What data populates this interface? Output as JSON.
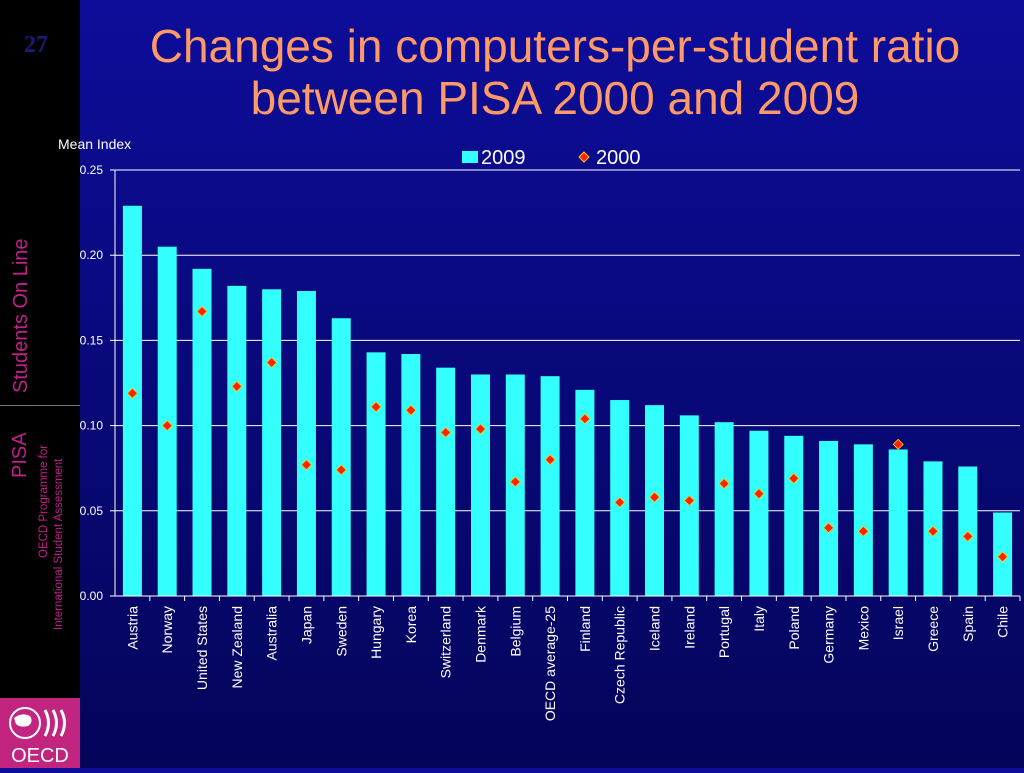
{
  "slide": {
    "number": "27",
    "title_line1": "Changes in computers-per-student ratio",
    "title_line2": "between PISA 2000 and 2009"
  },
  "sidebar": {
    "tagline": "Students On Line",
    "brand": "PISA",
    "subtitle_line1": "OECD Programme for",
    "subtitle_line2": "International Student Assessment",
    "logo_text": "OECD"
  },
  "colors": {
    "bar": "#33ffff",
    "marker": "#ff2200",
    "marker_stroke": "#ffcc00",
    "title": "#ff9966",
    "sidebar_text": "#c0208a"
  },
  "chart_data": {
    "type": "bar",
    "title": "",
    "xlabel": "",
    "ylabel": "Mean Index",
    "ylim": [
      0,
      0.25
    ],
    "yticks": [
      "0.00",
      "0.05",
      "0.10",
      "0.15",
      "0.20",
      "0.25"
    ],
    "grid": true,
    "legend_position": "top",
    "categories": [
      "Austria",
      "Norway",
      "United States",
      "New Zealand",
      "Australia",
      "Japan",
      "Sweden",
      "Hungary",
      "Korea",
      "Switzerland",
      "Denmark",
      "Belgium",
      "OECD average-25",
      "Finland",
      "Czech Republic",
      "Iceland",
      "Ireland",
      "Portugal",
      "Italy",
      "Poland",
      "Germany",
      "Mexico",
      "Israel",
      "Greece",
      "Spain",
      "Chile"
    ],
    "series": [
      {
        "name": "2009",
        "type": "bar",
        "values": [
          0.229,
          0.205,
          0.192,
          0.182,
          0.18,
          0.179,
          0.163,
          0.143,
          0.142,
          0.134,
          0.13,
          0.13,
          0.129,
          0.121,
          0.115,
          0.112,
          0.106,
          0.102,
          0.097,
          0.094,
          0.091,
          0.089,
          0.086,
          0.079,
          0.076,
          0.049
        ]
      },
      {
        "name": "2000",
        "type": "marker",
        "values": [
          0.119,
          0.1,
          0.167,
          0.123,
          0.137,
          0.077,
          0.074,
          0.111,
          0.109,
          0.096,
          0.098,
          0.067,
          0.08,
          0.104,
          0.055,
          0.058,
          0.056,
          0.066,
          0.06,
          0.069,
          0.04,
          0.038,
          0.089,
          0.038,
          0.035,
          0.023
        ]
      }
    ]
  }
}
